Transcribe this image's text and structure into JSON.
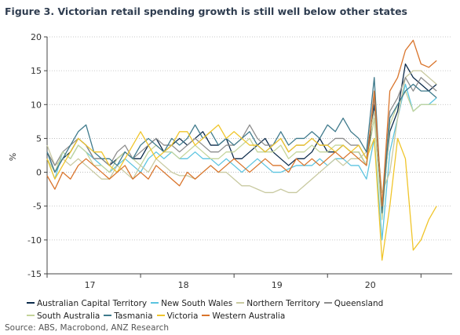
{
  "figure": {
    "title": "Figure 3. Victorian retail spending growth is still well below other states",
    "source": "Source: ABS, Macrobond, ANZ Research"
  },
  "chart_data": {
    "type": "line",
    "title": "Figure 3. Victorian retail spending growth is still well below other states",
    "ylabel": "%",
    "xlabel": "",
    "ylim": [
      -15,
      20
    ],
    "yticks": [
      -15,
      -10,
      -5,
      0,
      5,
      10,
      15,
      20
    ],
    "xlim": [
      0,
      52
    ],
    "xtick_labels": [
      {
        "label": "17",
        "pos": 5.5
      },
      {
        "label": "18",
        "pos": 17.5
      },
      {
        "label": "19",
        "pos": 29.5
      },
      {
        "label": "20",
        "pos": 41.5
      }
    ],
    "xtick_minor": [
      0,
      12,
      24,
      36,
      48
    ],
    "grid": "horizontal dotted",
    "legend_position": "bottom",
    "series": [
      {
        "name": "Australian Capital Territory",
        "color": "#0b2a4a",
        "values": [
          3,
          0,
          2,
          3,
          5,
          4,
          2,
          2,
          1,
          2,
          3,
          2,
          2,
          4,
          5,
          3,
          4,
          5,
          4,
          5,
          6,
          4,
          4,
          5,
          2,
          2,
          3,
          4,
          5,
          3,
          2,
          1,
          2,
          2,
          3,
          5,
          3,
          3,
          4,
          3,
          3,
          1,
          10,
          -5,
          6,
          9,
          16,
          14,
          13,
          12,
          13
        ]
      },
      {
        "name": "New South Wales",
        "color": "#5bc4e0",
        "values": [
          2,
          -1,
          3,
          2,
          4,
          3,
          2,
          1,
          0,
          1,
          2,
          1,
          0,
          2,
          3,
          2,
          3,
          2,
          2,
          3,
          2,
          2,
          1,
          2,
          1,
          0,
          1,
          2,
          1,
          0,
          0,
          0.5,
          1,
          1,
          1,
          2,
          1,
          2,
          2,
          1,
          1,
          -1,
          5,
          -10,
          3,
          8,
          13,
          9,
          10,
          10,
          11
        ]
      },
      {
        "name": "Northern Territory",
        "color": "#c8c9a0",
        "values": [
          4,
          1,
          2,
          1,
          2,
          1,
          0,
          -1,
          -1,
          1,
          0,
          -1,
          1,
          0,
          2,
          1,
          0,
          -0.5,
          -0.5,
          -1,
          0,
          1,
          0,
          0,
          -1,
          -2,
          -2,
          -2.5,
          -3,
          -3,
          -2.5,
          -3,
          -3,
          -2,
          -1,
          0,
          1,
          2,
          1,
          2,
          2,
          3,
          9,
          -3,
          0,
          8,
          14,
          15,
          15,
          14,
          13
        ]
      },
      {
        "name": "Queensland",
        "color": "#8c8c8c",
        "values": [
          3,
          1,
          3,
          4,
          5,
          4,
          2,
          2,
          1,
          3,
          4,
          2,
          3,
          4,
          5,
          4,
          4,
          3,
          4,
          5,
          4,
          3,
          3,
          4,
          4,
          5,
          7,
          5,
          4,
          4,
          5,
          3,
          4,
          4,
          5,
          4,
          4,
          5,
          5,
          4,
          4,
          2,
          11,
          -5,
          9,
          11,
          14,
          12,
          14,
          13,
          12
        ]
      },
      {
        "name": "South Australia",
        "color": "#c4d49a",
        "values": [
          2,
          0,
          3,
          2,
          4,
          3,
          1,
          1,
          0,
          2,
          3,
          2,
          1,
          3,
          4,
          3,
          3,
          2,
          3,
          4,
          3,
          2,
          2,
          3,
          3,
          4,
          5,
          3,
          3,
          3,
          4,
          2,
          3,
          3,
          4,
          3,
          3,
          4,
          4,
          3,
          3,
          1,
          8,
          -7,
          7,
          10,
          12,
          9,
          10,
          10,
          10
        ]
      },
      {
        "name": "Tasmania",
        "color": "#3f7a8c",
        "values": [
          3,
          0,
          2,
          4,
          6,
          7,
          3,
          2,
          2,
          1,
          3,
          2,
          4,
          5,
          4,
          3,
          5,
          4,
          5,
          7,
          5,
          6,
          4,
          5,
          4,
          5,
          6,
          4,
          3,
          4,
          6,
          4,
          5,
          5,
          6,
          5,
          7,
          6,
          8,
          6,
          5,
          3,
          14,
          -6,
          8,
          10,
          12,
          13,
          12,
          12,
          11
        ]
      },
      {
        "name": "Victoria",
        "color": "#f0c52a",
        "values": [
          2,
          -1,
          1,
          3,
          5,
          4,
          3,
          3,
          1,
          0,
          2,
          4,
          6,
          4,
          2,
          3,
          4,
          6,
          6,
          4,
          5,
          6,
          7,
          5,
          6,
          5,
          4,
          4,
          3,
          4,
          5,
          3,
          4,
          4,
          5,
          4,
          4,
          3,
          4,
          3,
          4,
          2,
          5,
          -13,
          -5,
          5,
          2,
          -11.5,
          -10,
          -7,
          -5
        ]
      },
      {
        "name": "Western Australia",
        "color": "#d9742b",
        "values": [
          -0.5,
          -2.5,
          0,
          -1,
          1,
          2,
          1,
          0,
          -1,
          0,
          1,
          -1,
          0,
          -1,
          1,
          0,
          -1,
          -2,
          0,
          -1,
          0,
          1,
          0,
          1,
          2,
          1,
          0,
          1,
          2,
          1,
          1,
          0,
          2,
          1,
          2,
          1,
          2,
          3,
          2,
          3,
          2,
          1,
          12,
          -5,
          12,
          14,
          18,
          19.5,
          16,
          15.5,
          16.5
        ]
      }
    ]
  }
}
